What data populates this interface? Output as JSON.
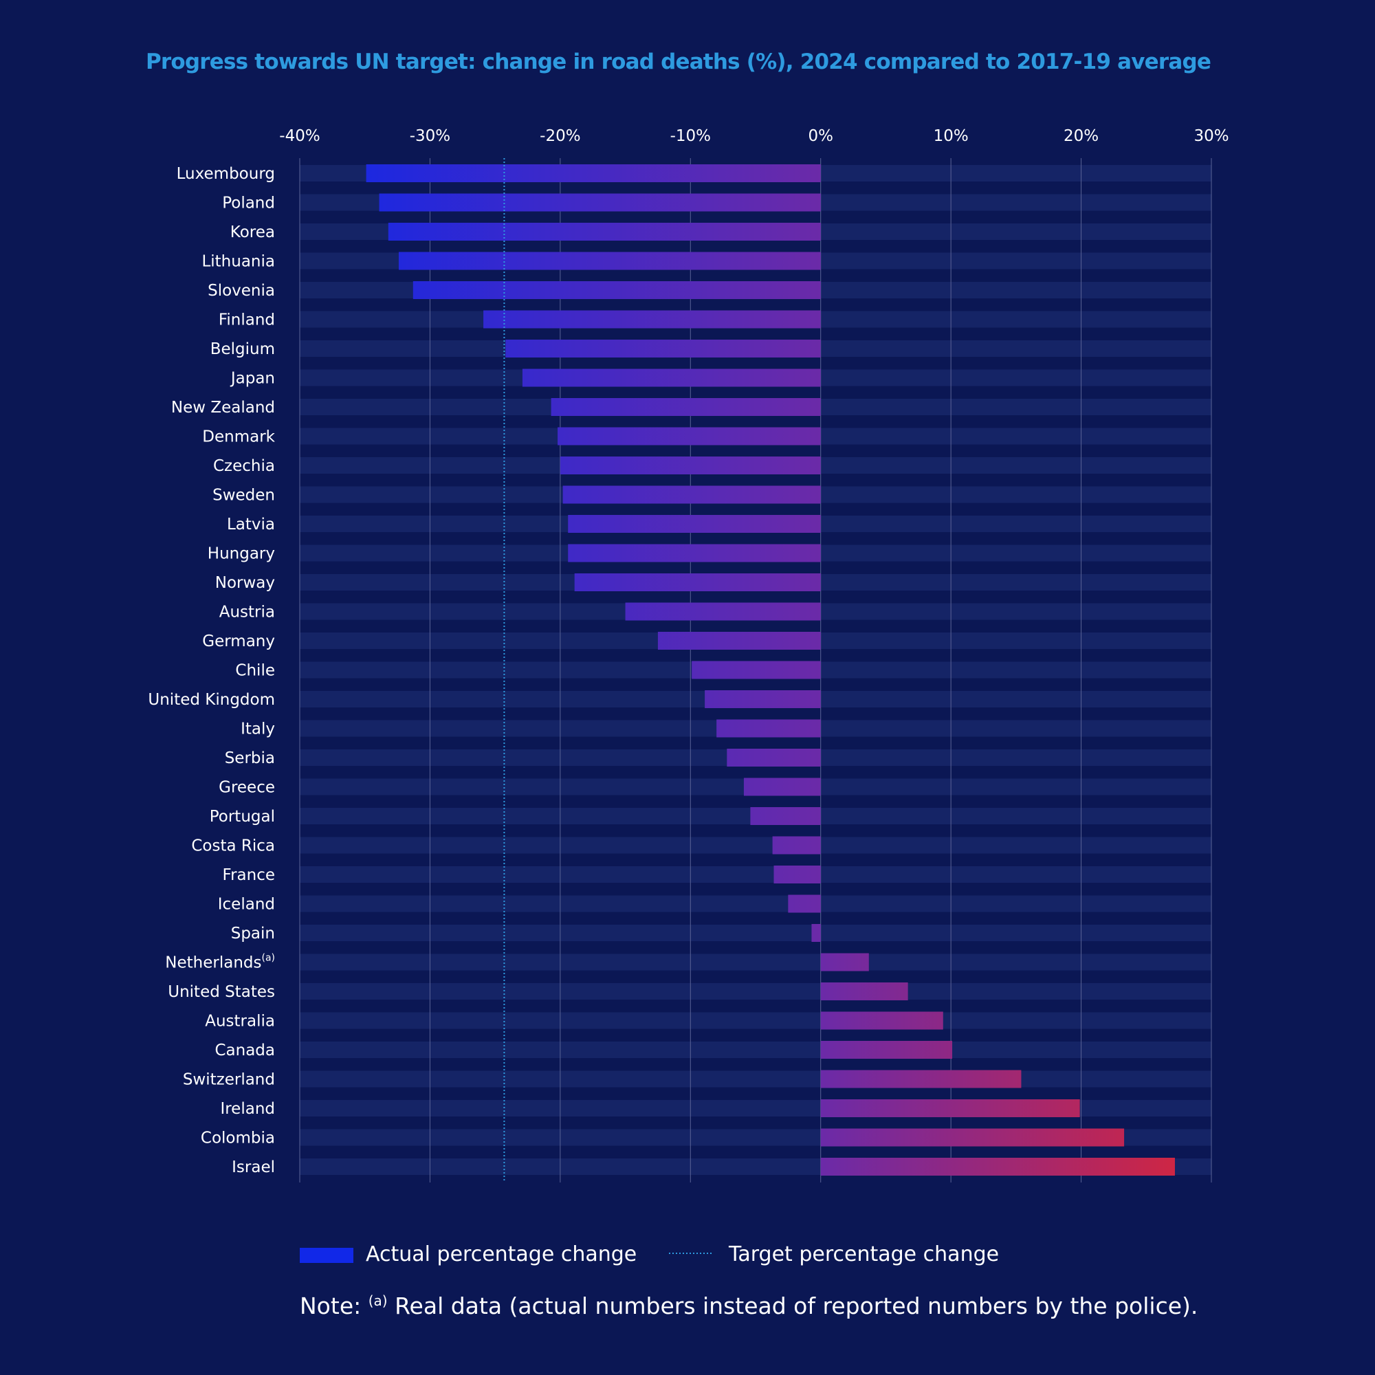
{
  "chart_data": {
    "type": "bar",
    "orientation": "horizontal",
    "title": "Progress towards UN target: change in road deaths (%), 2024 compared to 2017-19 average",
    "xlim": [
      -40,
      30
    ],
    "x_ticks": [
      -40,
      -30,
      -20,
      -10,
      0,
      10,
      20,
      30
    ],
    "x_tick_labels": [
      "-40%",
      "-30%",
      "-20%",
      "-10%",
      "0%",
      "10%",
      "20%",
      "30%"
    ],
    "target_value": -24.3,
    "categories": [
      "Luxembourg",
      "Poland",
      "Korea",
      "Lithuania",
      "Slovenia",
      "Finland",
      "Belgium",
      "Japan",
      "New Zealand",
      "Denmark",
      "Czechia",
      "Sweden",
      "Latvia",
      "Hungary",
      "Norway",
      "Austria",
      "Germany",
      "Chile",
      "United Kingdom",
      "Italy",
      "Serbia",
      "Greece",
      "Portugal",
      "Costa Rica",
      "France",
      "Iceland",
      "Spain",
      "Netherlands",
      "United States",
      "Australia",
      "Canada",
      "Switzerland",
      "Ireland",
      "Colombia",
      "Israel"
    ],
    "category_superscripts": {
      "Netherlands": "(a)"
    },
    "values": [
      -34.9,
      -33.9,
      -33.2,
      -32.4,
      -31.3,
      -25.9,
      -24.2,
      -22.9,
      -20.7,
      -20.2,
      -20.0,
      -19.8,
      -19.4,
      -19.4,
      -18.9,
      -15.0,
      -12.5,
      -9.9,
      -8.9,
      -8.0,
      -7.2,
      -5.9,
      -5.4,
      -3.7,
      -3.6,
      -2.5,
      -0.7,
      3.7,
      6.7,
      9.4,
      10.1,
      15.4,
      19.9,
      23.3,
      27.2
    ],
    "legend": [
      {
        "label": "Actual percentage change",
        "kind": "bar"
      },
      {
        "label": "Target percentage change",
        "kind": "dotted-line"
      }
    ],
    "legend_position": "bottom",
    "colors": {
      "negative_bar": "#1128e8",
      "near_zero_bar": "#6b2aa8",
      "positive_bar": "#d8253a",
      "row_background": "#152466",
      "target_line": "#2e9be0",
      "grid": "#5a6396"
    }
  },
  "note": {
    "prefix": "Note: ",
    "marker": "(a)",
    "text": " Real data (actual numbers instead of reported numbers by the police)."
  }
}
